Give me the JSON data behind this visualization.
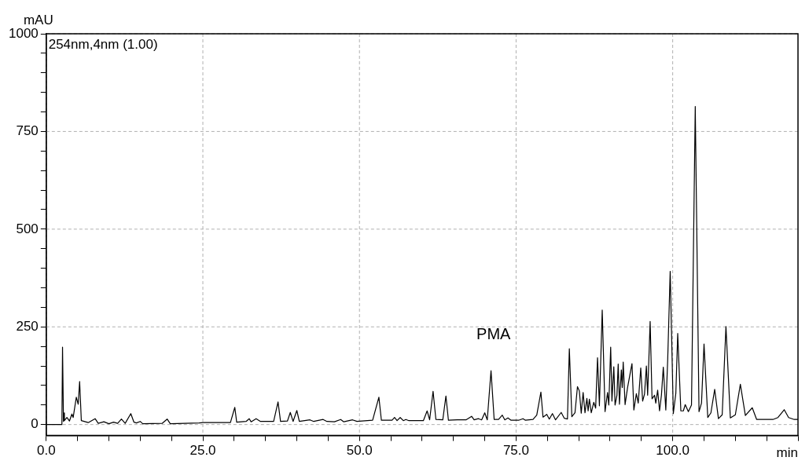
{
  "chart_data": {
    "type": "line",
    "ylabel": "mAU",
    "xlabel": "min",
    "annotations": [
      "254nm,4nm (1.00)",
      "PMA"
    ],
    "xlim": [
      0,
      120
    ],
    "ylim": [
      -28,
      1000
    ],
    "xticks": [
      {
        "value": 0,
        "label": "0.0"
      },
      {
        "value": 5,
        "label": null
      },
      {
        "value": 10,
        "label": null
      },
      {
        "value": 15,
        "label": null
      },
      {
        "value": 20,
        "label": null
      },
      {
        "value": 25,
        "label": "25.0"
      },
      {
        "value": 30,
        "label": null
      },
      {
        "value": 35,
        "label": null
      },
      {
        "value": 40,
        "label": null
      },
      {
        "value": 45,
        "label": null
      },
      {
        "value": 50,
        "label": "50.0"
      },
      {
        "value": 55,
        "label": null
      },
      {
        "value": 60,
        "label": null
      },
      {
        "value": 65,
        "label": null
      },
      {
        "value": 70,
        "label": null
      },
      {
        "value": 75,
        "label": "75.0"
      },
      {
        "value": 80,
        "label": null
      },
      {
        "value": 85,
        "label": null
      },
      {
        "value": 90,
        "label": null
      },
      {
        "value": 95,
        "label": null
      },
      {
        "value": 100,
        "label": "100.0"
      },
      {
        "value": 105,
        "label": null
      },
      {
        "value": 110,
        "label": null
      },
      {
        "value": 115,
        "label": null
      },
      {
        "value": 120,
        "label": null
      }
    ],
    "yticks": [
      0,
      {
        "value": 50,
        "label": null
      },
      {
        "value": 100,
        "label": null
      },
      {
        "value": 150,
        "label": null
      },
      {
        "value": 200,
        "label": null
      },
      250,
      {
        "value": 300,
        "label": null
      },
      {
        "value": 350,
        "label": null
      },
      {
        "value": 400,
        "label": null
      },
      {
        "value": 450,
        "label": null
      },
      500,
      {
        "value": 550,
        "label": null
      },
      {
        "value": 600,
        "label": null
      },
      {
        "value": 650,
        "label": null
      },
      {
        "value": 700,
        "label": null
      },
      750,
      {
        "value": 800,
        "label": null
      },
      {
        "value": 850,
        "label": null
      },
      {
        "value": 900,
        "label": null
      },
      {
        "value": 950,
        "label": null
      },
      1000
    ],
    "grid": true,
    "legend": false,
    "marker": "none",
    "line_style": "solid",
    "series": [
      {
        "color": "#000000",
        "x": [
          0,
          2.5,
          2.6,
          2.75,
          2.8,
          2.9,
          3.3,
          3.7,
          4.1,
          4.3,
          4.8,
          5.1,
          5.33,
          5.6,
          6.7,
          7.8,
          8.3,
          9.2,
          10,
          10.75,
          11.4,
          12,
          12.6,
          13.5,
          14,
          14.4,
          15,
          15.4,
          18.5,
          19.3,
          19.8,
          24.4,
          25,
          28.4,
          29.4,
          30.1,
          30.4,
          31.9,
          32.4,
          32.7,
          33.5,
          34.2,
          36.3,
          37,
          37.4,
          38.5,
          38.96,
          39.4,
          40,
          40.4,
          42.1,
          42.7,
          44.2,
          44.8,
          46,
          47,
          47.5,
          48.9,
          49.6,
          52.1,
          53.1,
          53.5,
          55.2,
          55.6,
          56,
          56.5,
          57,
          57.4,
          57.9,
          60.2,
          60.8,
          61.2,
          61.75,
          62.2,
          63.3,
          63.8,
          64.2,
          65.6,
          67,
          67.9,
          68.3,
          69,
          69.5,
          70,
          70.4,
          71,
          71.5,
          72.2,
          72.8,
          73.2,
          73.7,
          74.2,
          75.4,
          76.1,
          76.5,
          77.7,
          78.3,
          78.96,
          79.3,
          79.9,
          80.3,
          80.8,
          81.3,
          82.2,
          82.7,
          83.2,
          83.5,
          83.9,
          84.4,
          84.8,
          85.1,
          85.4,
          85.7,
          86,
          86.3,
          86.5,
          86.7,
          87,
          87.4,
          87.7,
          88,
          88.3,
          88.75,
          89.2,
          89.6,
          89.8,
          90.1,
          90.3,
          90.6,
          90.8,
          91.1,
          91.3,
          91.5,
          91.8,
          91.95,
          92.1,
          92.4,
          92.8,
          93.2,
          93.5,
          93.8,
          94.2,
          94.5,
          94.9,
          95.2,
          95.5,
          95.8,
          96,
          96.4,
          96.7,
          97.1,
          97.3,
          97.6,
          97.9,
          98.2,
          98.5,
          98.9,
          99.2,
          99.6,
          100.1,
          100.5,
          100.8,
          101.3,
          101.7,
          102,
          102.5,
          103,
          103.6,
          104.2,
          104.6,
          105,
          105.6,
          106.1,
          106.7,
          107.3,
          107.9,
          108.5,
          109.2,
          110,
          110.8,
          111.6,
          112.7,
          113.4,
          116,
          116.8,
          117.8,
          118.5,
          119.4,
          120
        ],
        "values": [
          0,
          0,
          198,
          8,
          30,
          10,
          18,
          9,
          27,
          18,
          70,
          52,
          110,
          10,
          5,
          15,
          3,
          7,
          2,
          6,
          3,
          14,
          3,
          28,
          6,
          4,
          8,
          2,
          3,
          14,
          2,
          4,
          5,
          5,
          5,
          44,
          6,
          8,
          15,
          7,
          15,
          8,
          8,
          58,
          8,
          9,
          31,
          8,
          36,
          8,
          12,
          8,
          13,
          8,
          7,
          13,
          7,
          12,
          8,
          11,
          70,
          11,
          11,
          18,
          10,
          18,
          10,
          13,
          10,
          10,
          35,
          12,
          85,
          13,
          12,
          73,
          11,
          12,
          12,
          21,
          12,
          15,
          12,
          30,
          12,
          138,
          13,
          13,
          24,
          12,
          17,
          11,
          11,
          15,
          11,
          13,
          24,
          83,
          19,
          26,
          14,
          28,
          12,
          31,
          16,
          14,
          194,
          20,
          30,
          97,
          86,
          29,
          82,
          30,
          67,
          35,
          65,
          30,
          57,
          42,
          171,
          48,
          293,
          33,
          82,
          50,
          198,
          60,
          148,
          50,
          75,
          155,
          52,
          140,
          95,
          160,
          51,
          95,
          130,
          156,
          37,
          79,
          55,
          145,
          60,
          78,
          150,
          75,
          264,
          66,
          75,
          55,
          88,
          35,
          75,
          147,
          37,
          165,
          392,
          28,
          80,
          233,
          35,
          35,
          51,
          33,
          50,
          814,
          33,
          55,
          206,
          18,
          30,
          90,
          15,
          25,
          251,
          17,
          25,
          103,
          23,
          43,
          13,
          13,
          18,
          38,
          18,
          13,
          13
        ]
      }
    ]
  }
}
